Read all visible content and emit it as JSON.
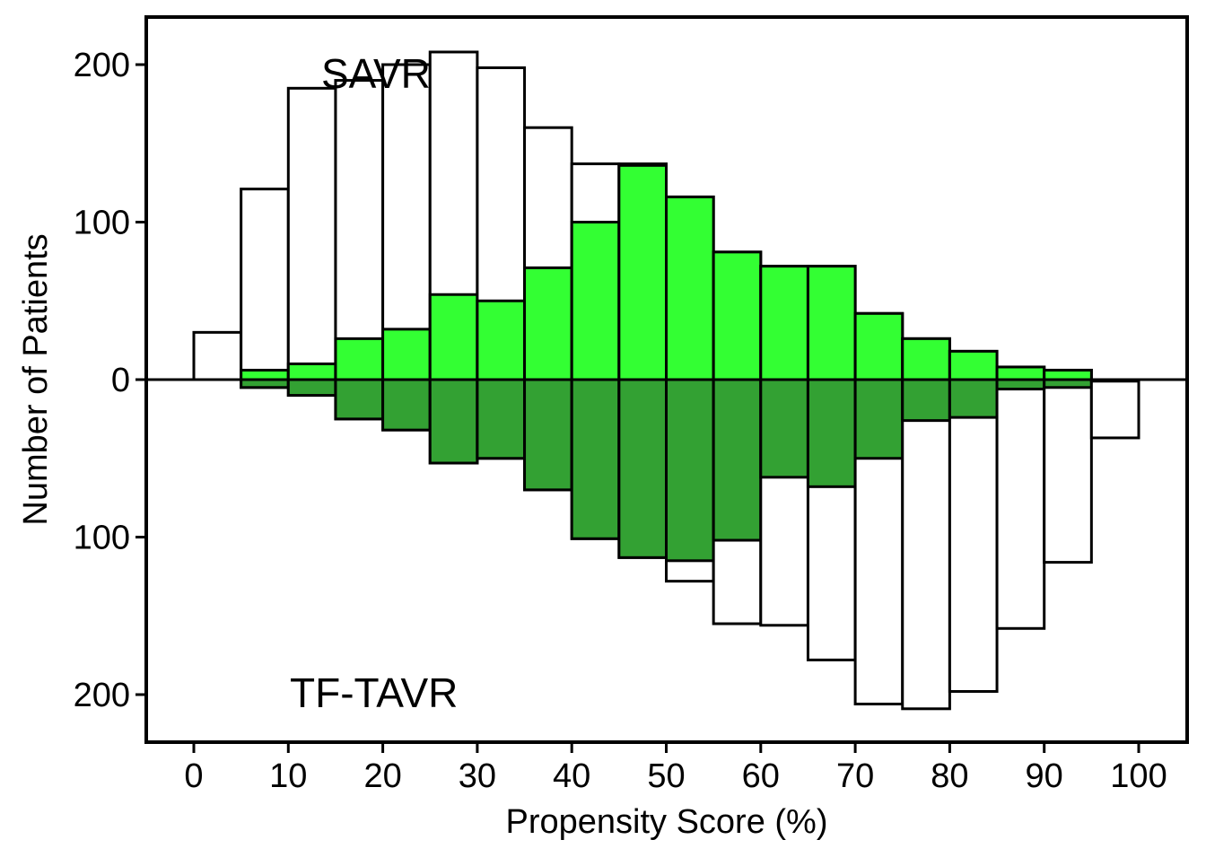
{
  "chart_data": {
    "type": "bar",
    "subtype": "mirrored-histogram",
    "xlabel": "Propensity Score (%)",
    "ylabel": "Number of Patients",
    "xlim": [
      0,
      100
    ],
    "ylim": [
      -230,
      230
    ],
    "xticks": [
      "0",
      "10",
      "20",
      "30",
      "40",
      "50",
      "60",
      "70",
      "80",
      "90",
      "100"
    ],
    "yticks": [
      {
        "value": 200,
        "label": "200"
      },
      {
        "value": 100,
        "label": "100"
      },
      {
        "value": 0,
        "label": "0"
      },
      {
        "value": -100,
        "label": "100"
      },
      {
        "value": -200,
        "label": "200"
      }
    ],
    "bin_width": 5,
    "bin_starts": [
      0,
      5,
      10,
      15,
      20,
      25,
      30,
      35,
      40,
      45,
      50,
      55,
      60,
      65,
      70,
      75,
      80,
      85,
      90,
      95
    ],
    "annotations": {
      "top": "SAVR",
      "bottom": "TF-TAVR"
    },
    "grid": false,
    "colors": {
      "upper_matched": "#33ff33",
      "lower_matched": "#33a133",
      "unmatched": "#ffffff",
      "outline": "#000000"
    },
    "upper": {
      "total": [
        30,
        121,
        185,
        190,
        200,
        208,
        198,
        160,
        137,
        137,
        116,
        81,
        72,
        72,
        42,
        26,
        18,
        8,
        6,
        0
      ],
      "matched": [
        0,
        6,
        10,
        26,
        32,
        54,
        50,
        71,
        100,
        136,
        116,
        81,
        72,
        72,
        42,
        26,
        18,
        8,
        6,
        0
      ]
    },
    "lower": {
      "total": [
        0,
        5,
        10,
        25,
        32,
        53,
        50,
        70,
        101,
        113,
        128,
        155,
        156,
        178,
        206,
        209,
        198,
        158,
        116,
        37
      ],
      "matched": [
        0,
        5,
        10,
        25,
        32,
        53,
        50,
        70,
        101,
        113,
        115,
        102,
        62,
        68,
        50,
        26,
        24,
        6,
        5,
        1
      ]
    }
  }
}
